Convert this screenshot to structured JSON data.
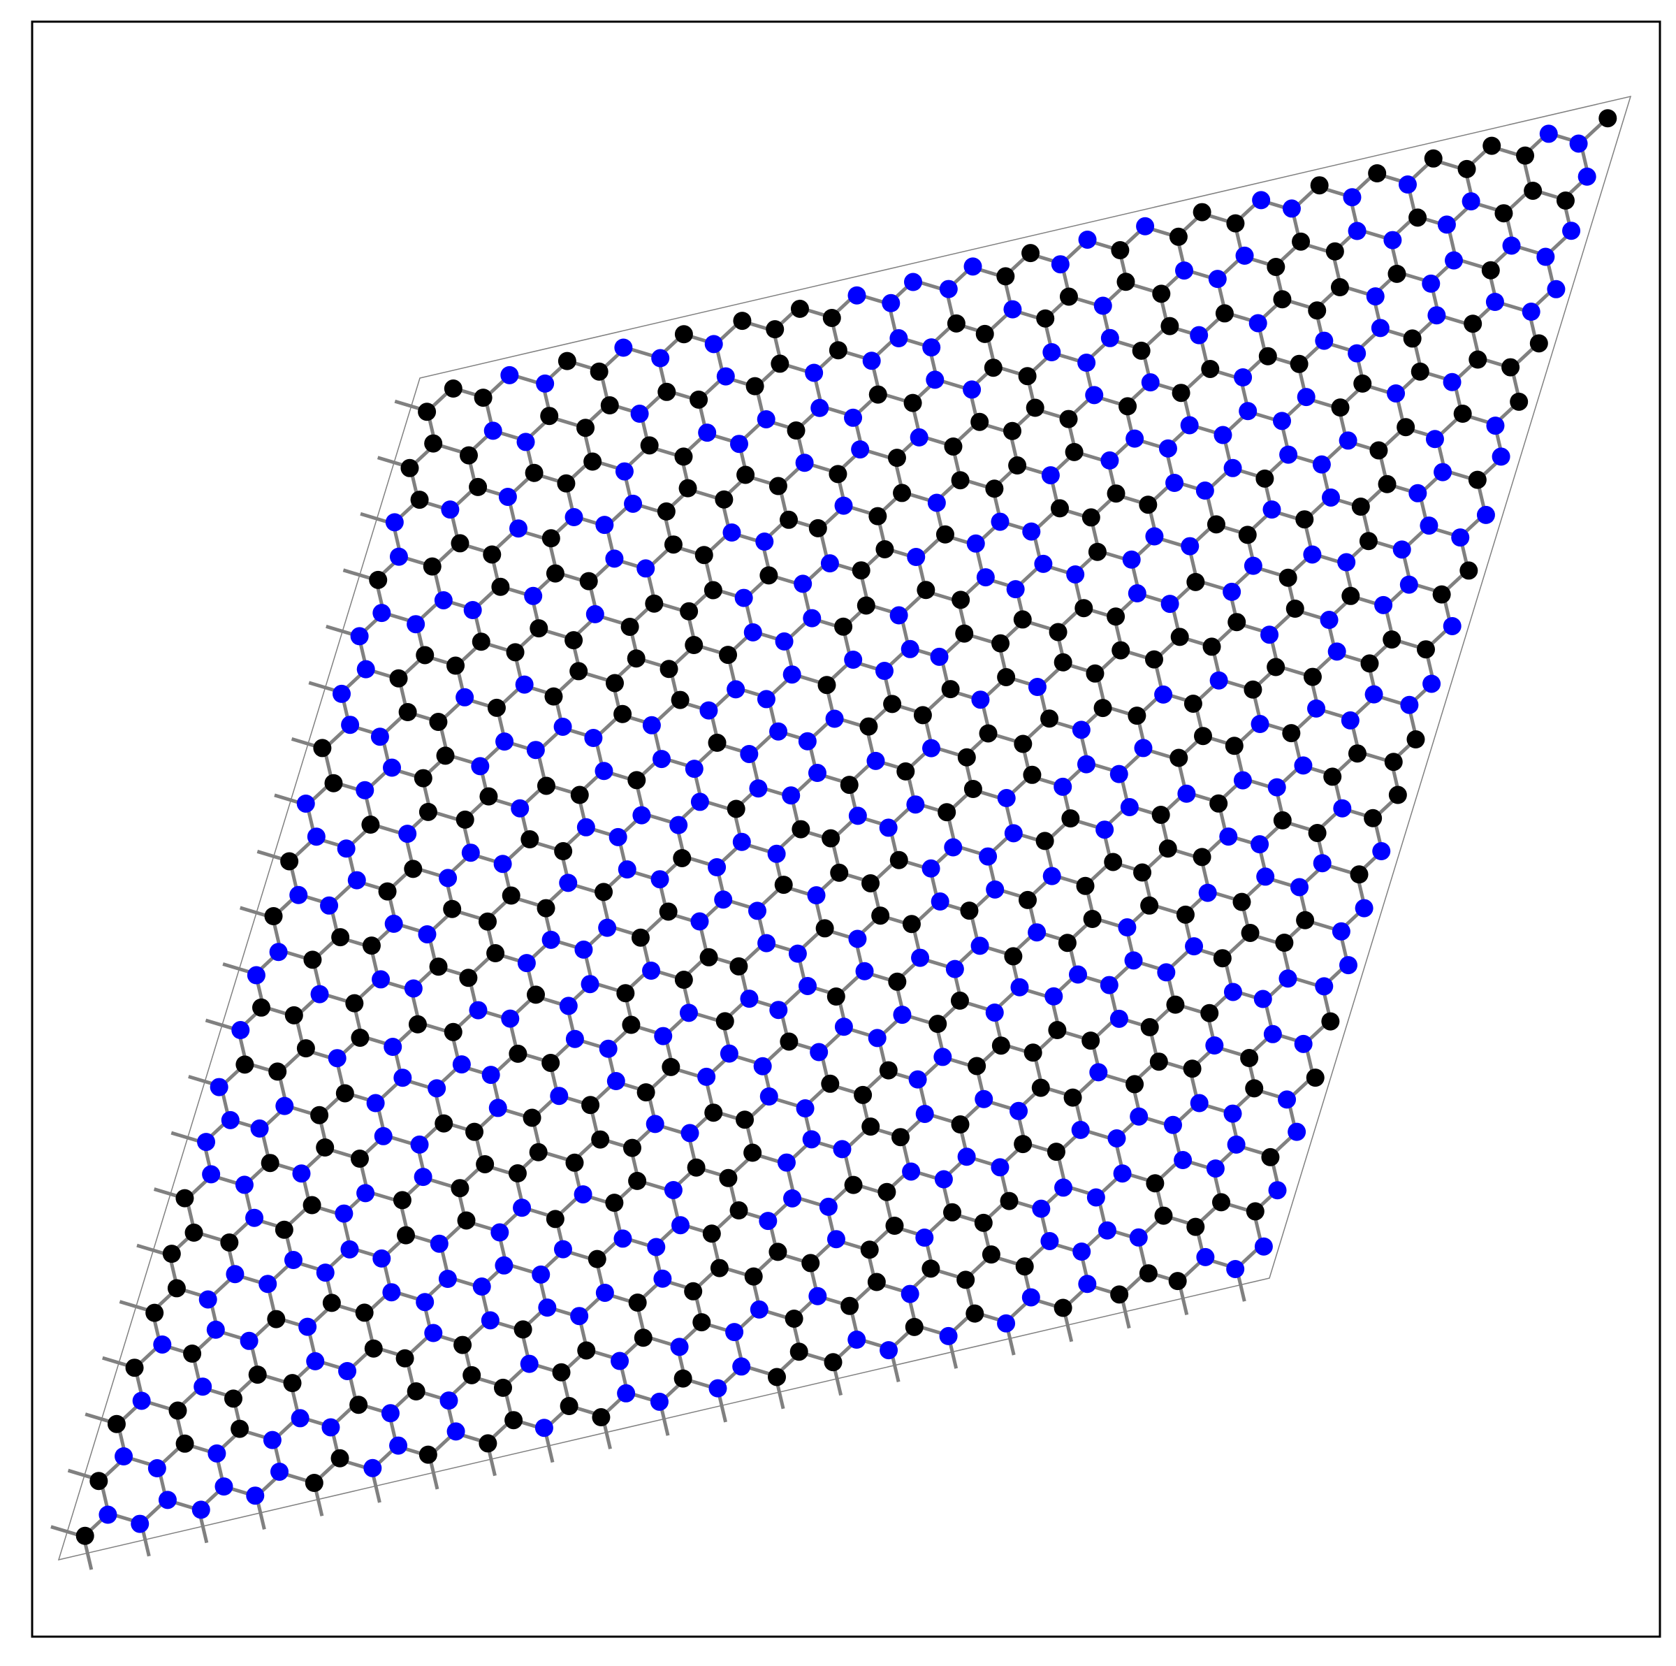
{
  "figure": {
    "atom_colors": [
      "#0000ff",
      "#000000"
    ],
    "bond_color": "#808080",
    "cell_color": "#808080"
  }
}
